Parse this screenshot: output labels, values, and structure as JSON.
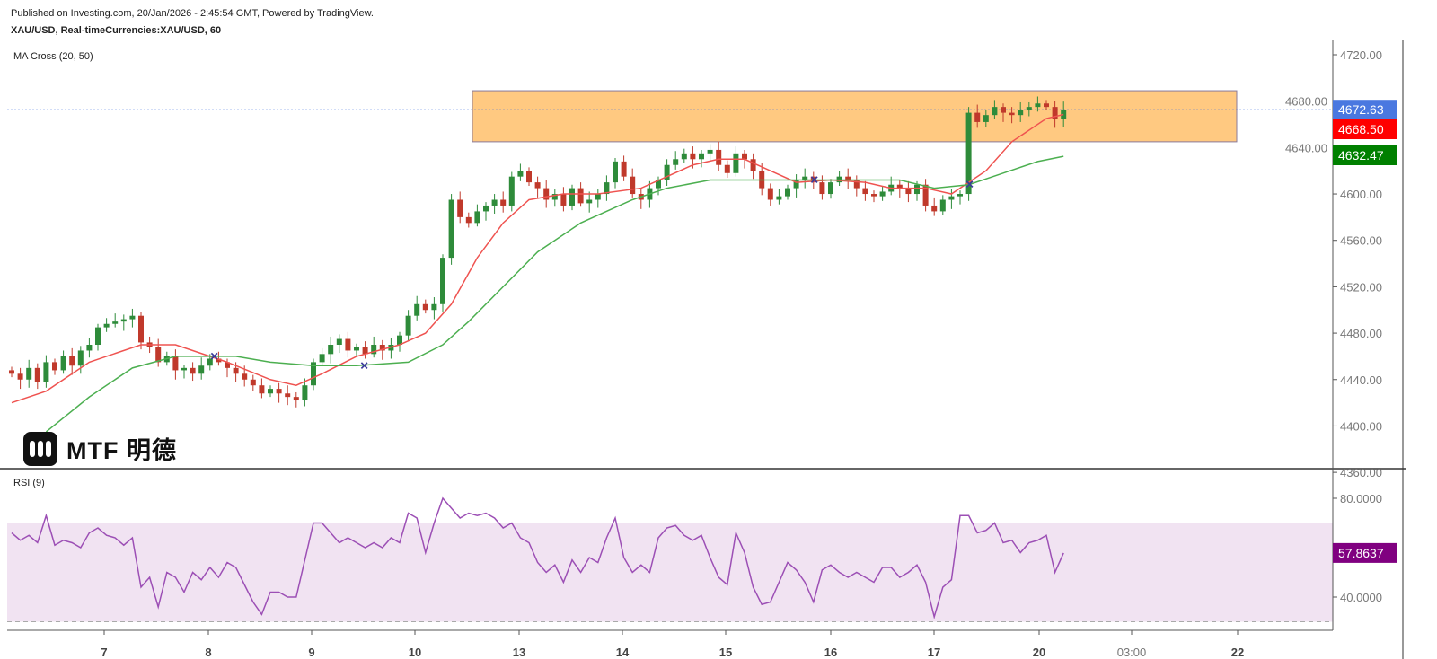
{
  "header": {
    "published": "Published on Investing.com, 20/Jan/2026 - 2:45:54 GMT, Powered by TradingView.",
    "symbol": "XAU/USD, Real-timeCurrencies:XAU/USD, 60",
    "ma_label": "MA Cross (20, 50)",
    "rsi_label": "RSI (9)"
  },
  "logo": {
    "text": "MTF 明德"
  },
  "colors": {
    "up": "#2e8b3a",
    "down": "#c0392b",
    "ma_fast": "#ef5350",
    "ma_slow": "#4caf50",
    "rsi": "#9c4fb5",
    "rsi_band": "#f1e3f2",
    "zone": "#ffc981",
    "last_price": "#4a78e0",
    "ma_fast_badge": "#ff0000",
    "ma_slow_badge": "#008000",
    "rsi_badge": "#800080"
  },
  "chart_data": [
    {
      "type": "candlestick",
      "title": "XAU/USD, Real-timeCurrencies:XAU/USD, 60",
      "ylim": [
        4360,
        4720
      ],
      "y_ticks": [
        "4720.00",
        "4680.00",
        "4640.00",
        "4600.00",
        "4560.00",
        "4520.00",
        "4480.00",
        "4440.00",
        "4400.00",
        "4360.00"
      ],
      "x_ticks": [
        "7",
        "8",
        "9",
        "10",
        "13",
        "14",
        "15",
        "16",
        "17",
        "20",
        "03:00",
        "22"
      ],
      "grid": false,
      "closes": [
        4445,
        4440,
        4450,
        4438,
        4455,
        4448,
        4460,
        4452,
        4465,
        4470,
        4485,
        4488,
        4490,
        4492,
        4495,
        4472,
        4468,
        4455,
        4460,
        4448,
        4450,
        4445,
        4452,
        4458,
        4455,
        4450,
        4445,
        4440,
        4435,
        4428,
        4432,
        4428,
        4425,
        4422,
        4435,
        4455,
        4462,
        4470,
        4475,
        4465,
        4468,
        4462,
        4470,
        4465,
        4470,
        4478,
        4495,
        4505,
        4500,
        4505,
        4545,
        4595,
        4580,
        4575,
        4585,
        4590,
        4595,
        4590,
        4615,
        4620,
        4610,
        4605,
        4595,
        4600,
        4590,
        4605,
        4592,
        4595,
        4600,
        4610,
        4628,
        4615,
        4600,
        4595,
        4605,
        4612,
        4625,
        4630,
        4635,
        4630,
        4635,
        4638,
        4625,
        4618,
        4635,
        4630,
        4620,
        4605,
        4595,
        4598,
        4605,
        4612,
        4615,
        4610,
        4600,
        4610,
        4615,
        4612,
        4605,
        4600,
        4598,
        4602,
        4608,
        4605,
        4600,
        4608,
        4590,
        4585,
        4595,
        4598,
        4600,
        4670,
        4662,
        4668,
        4675,
        4670,
        4668,
        4672,
        4675,
        4678,
        4675,
        4665,
        4672.63
      ],
      "ma_fast": {
        "label": "MA 20",
        "value": "4668.50",
        "points": [
          [
            0,
            4420
          ],
          [
            4,
            4430
          ],
          [
            9,
            4455
          ],
          [
            15,
            4470
          ],
          [
            19,
            4470
          ],
          [
            25,
            4455
          ],
          [
            30,
            4440
          ],
          [
            33,
            4435
          ],
          [
            36,
            4445
          ],
          [
            40,
            4460
          ],
          [
            45,
            4470
          ],
          [
            48,
            4480
          ],
          [
            51,
            4505
          ],
          [
            54,
            4545
          ],
          [
            57,
            4575
          ],
          [
            60,
            4595
          ],
          [
            64,
            4600
          ],
          [
            68,
            4600
          ],
          [
            73,
            4605
          ],
          [
            76,
            4615
          ],
          [
            79,
            4625
          ],
          [
            82,
            4630
          ],
          [
            85,
            4630
          ],
          [
            88,
            4620
          ],
          [
            91,
            4610
          ],
          [
            95,
            4612
          ],
          [
            99,
            4610
          ],
          [
            102,
            4605
          ],
          [
            106,
            4605
          ],
          [
            109,
            4600
          ],
          [
            113,
            4620
          ],
          [
            116,
            4645
          ],
          [
            120,
            4665
          ],
          [
            122,
            4668.5
          ]
        ]
      },
      "ma_slow": {
        "label": "MA 50",
        "value": "4632.47",
        "points": [
          [
            4,
            4395
          ],
          [
            9,
            4425
          ],
          [
            14,
            4450
          ],
          [
            19,
            4460
          ],
          [
            26,
            4460
          ],
          [
            30,
            4455
          ],
          [
            35,
            4452
          ],
          [
            40,
            4452
          ],
          [
            46,
            4455
          ],
          [
            50,
            4470
          ],
          [
            53,
            4490
          ],
          [
            57,
            4520
          ],
          [
            61,
            4550
          ],
          [
            66,
            4575
          ],
          [
            72,
            4595
          ],
          [
            76,
            4605
          ],
          [
            81,
            4612
          ],
          [
            87,
            4612
          ],
          [
            92,
            4612
          ],
          [
            99,
            4612
          ],
          [
            103,
            4612
          ],
          [
            107,
            4605
          ],
          [
            111,
            4608
          ],
          [
            115,
            4618
          ],
          [
            119,
            4628
          ],
          [
            122,
            4632.47
          ]
        ]
      },
      "crosses": [
        [
          23.4,
          4460
        ],
        [
          40.8,
          4452
        ],
        [
          93,
          4612
        ],
        [
          111,
          4608
        ]
      ],
      "zone": {
        "top": 4689,
        "bottom": 4645,
        "from_bar": 55,
        "to_bar": 142
      },
      "last_price": "4672.63"
    },
    {
      "type": "line",
      "title": "RSI (9)",
      "ylim": [
        20,
        90
      ],
      "y_ticks": [
        "80.0000",
        "40.0000"
      ],
      "band": [
        30,
        70
      ],
      "last_value": "57.8637",
      "values": [
        66,
        63,
        65,
        62,
        73,
        61,
        63,
        62,
        60,
        66,
        68,
        65,
        64,
        61,
        64,
        44,
        48,
        36,
        50,
        48,
        42,
        50,
        47,
        52,
        48,
        54,
        52,
        45,
        38,
        33,
        42,
        42,
        40,
        40,
        55,
        70,
        70,
        66,
        62,
        64,
        62,
        60,
        62,
        60,
        64,
        62,
        74,
        72,
        58,
        70,
        80,
        76,
        72,
        74,
        73,
        74,
        72,
        68,
        70,
        64,
        62,
        54,
        50,
        53,
        46,
        55,
        50,
        56,
        54,
        64,
        72,
        56,
        50,
        53,
        50,
        64,
        68,
        69,
        65,
        63,
        65,
        56,
        48,
        45,
        66,
        58,
        44,
        37,
        38,
        46,
        54,
        51,
        46,
        38,
        51,
        53,
        50,
        48,
        50,
        48,
        46,
        52,
        52,
        48,
        50,
        53,
        46,
        32,
        44,
        47,
        73,
        73,
        66,
        67,
        70,
        62,
        63,
        58,
        62,
        63,
        65,
        50,
        57.86
      ]
    }
  ]
}
